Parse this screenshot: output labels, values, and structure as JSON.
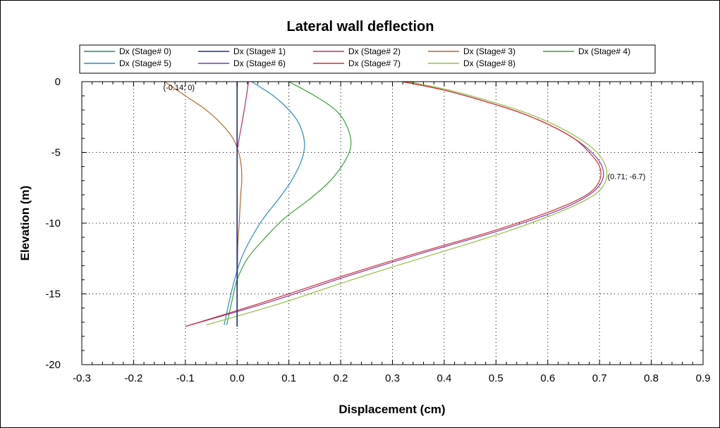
{
  "chart_data": {
    "type": "line",
    "title": "Lateral wall deflection",
    "xlabel": "Displacement (cm)",
    "ylabel": "Elevation (m)",
    "xlim": [
      -0.3,
      0.9
    ],
    "ylim": [
      -20,
      0
    ],
    "xticks": [
      "-0.3",
      "-0.2",
      "-0.1",
      "0.0",
      "0.1",
      "0.2",
      "0.3",
      "0.4",
      "0.5",
      "0.6",
      "0.7",
      "0.8",
      "0.9"
    ],
    "yticks": [
      "0",
      "-5",
      "-10",
      "-15",
      "-20"
    ],
    "grid": true,
    "legend_position": "top",
    "series": [
      {
        "name": "Dx (Stage# 0)",
        "color": "#1e8c6e",
        "x": [
          0,
          0
        ],
        "y": [
          0,
          -17.3
        ]
      },
      {
        "name": "Dx (Stage# 1)",
        "color": "#1f2f8f",
        "x": [
          0,
          0
        ],
        "y": [
          0,
          -17.3
        ]
      },
      {
        "name": "Dx (Stage# 2)",
        "color": "#b03070",
        "x": [
          0.022,
          0.016,
          0.009,
          0.002,
          0.0,
          0.0
        ],
        "y": [
          0,
          -1.5,
          -3,
          -4.5,
          -6,
          -17.3
        ]
      },
      {
        "name": "Dx (Stage# 3)",
        "color": "#b06a2a",
        "x": [
          -0.14,
          -0.1,
          -0.06,
          -0.03,
          -0.008,
          0.003,
          0.008,
          0.009,
          0.007,
          0.004,
          0.001,
          0.0
        ],
        "y": [
          0,
          -1,
          -2,
          -3,
          -4,
          -5,
          -6,
          -7,
          -8,
          -10,
          -12,
          -17.3
        ]
      },
      {
        "name": "Dx (Stage# 4)",
        "color": "#3aa03a",
        "x": [
          0.1,
          0.15,
          0.19,
          0.21,
          0.22,
          0.21,
          0.18,
          0.14,
          0.09,
          0.05,
          0.02,
          0.0,
          -0.01,
          -0.02
        ],
        "y": [
          0,
          -1,
          -2,
          -3,
          -4.3,
          -5.5,
          -7,
          -8.3,
          -9.7,
          -11.2,
          -12.5,
          -14,
          -15.5,
          -17.2
        ]
      },
      {
        "name": "Dx (Stage# 5)",
        "color": "#2a8cc0",
        "x": [
          0.028,
          0.07,
          0.1,
          0.12,
          0.13,
          0.125,
          0.105,
          0.08,
          0.05,
          0.025,
          0.008,
          -0.005,
          -0.015,
          -0.025
        ],
        "y": [
          0,
          -1,
          -2,
          -3,
          -4.3,
          -5.5,
          -7,
          -8.3,
          -9.7,
          -11.2,
          -12.5,
          -14,
          -15.5,
          -17.2
        ]
      },
      {
        "name": "Dx (Stage# 6)",
        "color": "#7a3ab0",
        "x": [
          0.32,
          0.4,
          0.47,
          0.54,
          0.6,
          0.65,
          0.685,
          0.705,
          0.705,
          0.68,
          0.62,
          0.5,
          0.35,
          0.2,
          0.06,
          -0.1
        ],
        "y": [
          0,
          -0.6,
          -1.3,
          -2.1,
          -3,
          -4,
          -5,
          -6,
          -7,
          -8,
          -9.1,
          -10.6,
          -12.2,
          -13.9,
          -15.6,
          -17.3
        ]
      },
      {
        "name": "Dx (Stage# 7)",
        "color": "#d03030",
        "x": [
          0.32,
          0.4,
          0.47,
          0.54,
          0.6,
          0.65,
          0.68,
          0.7,
          0.7,
          0.675,
          0.61,
          0.49,
          0.34,
          0.19,
          0.05,
          -0.1
        ],
        "y": [
          0,
          -0.6,
          -1.3,
          -2.1,
          -3,
          -4,
          -5,
          -6,
          -7,
          -8,
          -9.1,
          -10.6,
          -12.2,
          -13.9,
          -15.6,
          -17.3
        ]
      },
      {
        "name": "Dx (Stage# 8)",
        "color": "#90c040",
        "x": [
          0.33,
          0.41,
          0.48,
          0.55,
          0.61,
          0.66,
          0.695,
          0.712,
          0.712,
          0.69,
          0.63,
          0.52,
          0.38,
          0.23,
          0.09,
          -0.06
        ],
        "y": [
          0,
          -0.6,
          -1.3,
          -2.1,
          -3,
          -4,
          -5,
          -6,
          -7,
          -8,
          -9.1,
          -10.6,
          -12.2,
          -13.9,
          -15.6,
          -17.2
        ]
      }
    ],
    "annotations": [
      {
        "text": "(-0.14; 0)",
        "x": -0.14,
        "y": 0
      },
      {
        "text": "(0.71; -6.7)",
        "x": 0.71,
        "y": -6.7
      }
    ]
  }
}
